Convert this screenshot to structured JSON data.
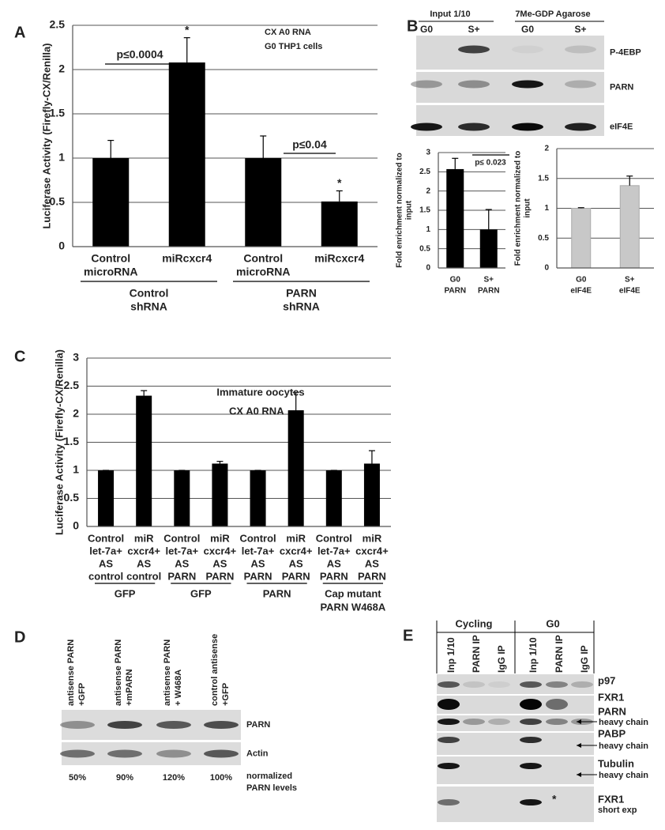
{
  "chart_data": [
    {
      "type": "bar",
      "panel": "A",
      "ylabel": [
        "Luciferase Activity (Firefly-CX/Renilla)"
      ],
      "categories": [
        [
          "Control",
          "microRNA"
        ],
        [
          "miRcxcr4"
        ],
        [
          "Control",
          "microRNA"
        ],
        [
          "miRcxcr4"
        ]
      ],
      "values": [
        1,
        2.08,
        1,
        0.51
      ],
      "errors": [
        0.2,
        0.28,
        0.25,
        0.12
      ],
      "color": "#000000",
      "ylim": [
        0,
        2.5
      ],
      "yticks": [
        0,
        0.5,
        1,
        1.5,
        2,
        2.5
      ],
      "grid": true,
      "groups": [
        [
          "Control",
          "shRNA"
        ],
        [
          "PARN",
          "shRNA"
        ]
      ],
      "annotations": [
        "CX A0 RNA",
        "G0 THP1 cells",
        "p≤0.0004",
        "p≤0.04",
        "*",
        "*"
      ]
    },
    {
      "type": "bar",
      "ylabel": [
        "Fold enrichment normalized to",
        "input"
      ],
      "categories": [
        [
          "G0",
          "PARN"
        ],
        [
          "S+",
          "PARN"
        ]
      ],
      "values": [
        2.57,
        1
      ],
      "errors": [
        0.28,
        0.52
      ],
      "color": "#000000",
      "ylim": [
        0,
        3
      ],
      "yticks": [
        0,
        0.5,
        1,
        1.5,
        2,
        2.5,
        3
      ],
      "grid": true,
      "annotations": [
        "p≤ 0.023"
      ]
    },
    {
      "type": "bar",
      "ylabel": [
        "Fold enrichment normalized to",
        "input"
      ],
      "categories": [
        [
          "G0",
          "eIF4E"
        ],
        [
          "S+",
          "eIF4E"
        ]
      ],
      "values": [
        1,
        1.38
      ],
      "errors": [
        0.01,
        0.16
      ],
      "color": "#c8c8c8",
      "ylim": [
        0,
        2
      ],
      "yticks": [
        0,
        0.5,
        1,
        1.5,
        2
      ],
      "grid": true,
      "annotations": []
    },
    {
      "type": "bar",
      "panel": "C",
      "ylabel": [
        "Luciferase Activity (Firefly-CX/Renilla)"
      ],
      "categories": [
        [
          "Control",
          "let-7a+",
          "AS",
          "control"
        ],
        [
          "miR",
          "cxcr4+",
          "AS",
          "control"
        ],
        [
          "Control",
          "let-7a+",
          "AS",
          "PARN"
        ],
        [
          "miR",
          "cxcr4+",
          "AS",
          "PARN"
        ],
        [
          "Control",
          "let-7a+",
          "AS",
          "PARN"
        ],
        [
          "miR",
          "cxcr4+",
          "AS",
          "PARN"
        ],
        [
          "Control",
          "let-7a+",
          "AS",
          "PARN"
        ],
        [
          "miR",
          "cxcr4+",
          "AS",
          "PARN"
        ]
      ],
      "values": [
        1,
        2.33,
        1,
        1.12,
        1,
        2.07,
        1,
        1.12
      ],
      "errors": [
        0,
        0.09,
        0,
        0.04,
        0,
        0.32,
        0,
        0.23
      ],
      "color": "#000000",
      "ylim": [
        0,
        3
      ],
      "yticks": [
        0,
        0.5,
        1,
        1.5,
        2,
        2.5,
        3
      ],
      "grid": true,
      "groups": [
        [
          "GFP"
        ],
        [
          "GFP"
        ],
        [
          "PARN"
        ],
        [
          "Cap mutant",
          "PARN W468A"
        ]
      ],
      "annotations": [
        "Immature oocytes",
        "CX A0 RNA"
      ]
    }
  ],
  "blot_b": {
    "panel": "B",
    "headers": [
      "Input 1/10",
      "7Me-GDP Agarose"
    ],
    "lanes": [
      "G0",
      "S+",
      "G0",
      "S+"
    ],
    "rows": [
      "P-4EBP",
      "PARN",
      "eIF4E"
    ]
  },
  "blot_d": {
    "panel": "D",
    "lanes": [
      [
        "antisense PARN",
        "+GFP"
      ],
      [
        "antisense PARN",
        "+mPARN"
      ],
      [
        "antisense PARN",
        "+ W468A"
      ],
      [
        "control antisense",
        "+GFP"
      ]
    ],
    "rows": [
      "PARN",
      "Actin"
    ],
    "levels": [
      "50%",
      "90%",
      "120%",
      "100%"
    ],
    "caption": [
      "normalized",
      "PARN levels"
    ]
  },
  "blot_e": {
    "panel": "E",
    "groups": [
      "Cycling",
      "G0"
    ],
    "lanes": [
      "Inp 1/10",
      "PARN IP",
      "IgG IP",
      "Inp 1/10",
      "PARN IP",
      "IgG IP"
    ],
    "rows": [
      {
        "name": "p97"
      },
      {
        "name": "FXR1"
      },
      {
        "name": "PARN",
        "sub": "heavy chain"
      },
      {
        "name": "PABP",
        "sub": "heavy chain"
      },
      {
        "name": "Tubulin",
        "sub": "heavy chain"
      },
      {
        "name": "FXR1",
        "sub": "short exp"
      }
    ],
    "star": "*"
  }
}
